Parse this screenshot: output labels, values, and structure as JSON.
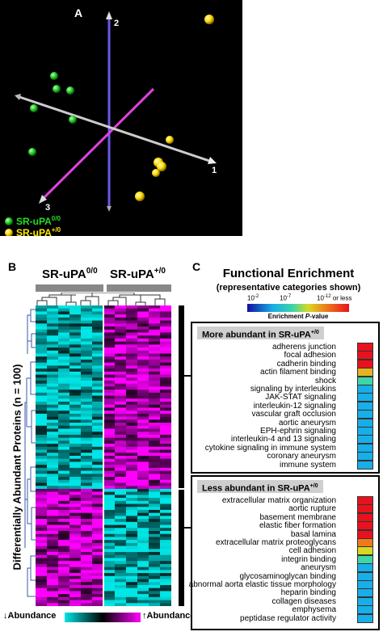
{
  "panel_a": {
    "letter": "A",
    "axes": [
      {
        "label": "1"
      },
      {
        "label": "2"
      },
      {
        "label": "3"
      }
    ],
    "legend": [
      {
        "group": "SR-uPA",
        "superscript": "0/0",
        "color": "#22cc22"
      },
      {
        "group": "SR-uPA",
        "superscript": "+/0",
        "color": "#ffee00"
      }
    ]
  },
  "panel_b": {
    "letter": "B",
    "col_labels": [
      {
        "group": "SR-uPA",
        "superscript": "0/0"
      },
      {
        "group": "SR-uPA",
        "superscript": "+/0"
      }
    ],
    "ylabel": "Differentially Abundant Proteins (n = 100)",
    "scale_left": "Abundance",
    "scale_right": "Abundance",
    "colors": {
      "low": "#00e5e5",
      "mid": "#000000",
      "high": "#ff00ff"
    }
  },
  "panel_c": {
    "letter": "C",
    "title": "Functional Enrichment",
    "subtitle": "(representative categories shown)",
    "colorbar": {
      "ticks": [
        "10",
        "10",
        "10"
      ],
      "exponents": [
        "-2",
        "-7",
        "-12"
      ],
      "suffix": "or less",
      "label": "Enrichment P-value",
      "label_main": "Enrichment ",
      "label_italic": "P",
      "label_rest": "-value"
    },
    "more": {
      "title": "More abundant in SR-uPA",
      "superscript": "+/0",
      "items": [
        {
          "label": "adherens junction",
          "color": "#e8121e"
        },
        {
          "label": "focal adhesion",
          "color": "#e8121e"
        },
        {
          "label": "cadherin binding",
          "color": "#e8121e"
        },
        {
          "label": "actin filament binding",
          "color": "#e8b320"
        },
        {
          "label": "shock",
          "color": "#3ed6a5"
        },
        {
          "label": "signaling by interleukins",
          "color": "#18aee8"
        },
        {
          "label": "JAK-STAT signaling",
          "color": "#18aee8"
        },
        {
          "label": "interleukin-12 signaling",
          "color": "#18aee8"
        },
        {
          "label": "vascular graft occlusion",
          "color": "#18aee8"
        },
        {
          "label": "aortic aneurysm",
          "color": "#18aee8"
        },
        {
          "label": "EPH-ephrin signaling",
          "color": "#18aee8"
        },
        {
          "label": "interleukin-4 and 13 signaling",
          "color": "#18aee8"
        },
        {
          "label": "cytokine signaling in immune system",
          "color": "#18aee8"
        },
        {
          "label": "coronary aneurysm",
          "color": "#18aee8"
        },
        {
          "label": "immune system",
          "color": "#18aee8"
        }
      ]
    },
    "less": {
      "title": "Less abundant in SR-uPA",
      "superscript": "+/0",
      "items": [
        {
          "label": "extracellular matrix organization",
          "color": "#e8121e"
        },
        {
          "label": "aortic rupture",
          "color": "#e8121e"
        },
        {
          "label": "basement membrane",
          "color": "#e8121e"
        },
        {
          "label": "elastic fiber formation",
          "color": "#e8121e"
        },
        {
          "label": "basal lamina",
          "color": "#e8121e"
        },
        {
          "label": "extracellular matrix proteoglycans",
          "color": "#ee7a1a"
        },
        {
          "label": "cell adhesion",
          "color": "#d8d820"
        },
        {
          "label": "integrin binding",
          "color": "#3ed6a5"
        },
        {
          "label": "aneurysm",
          "color": "#18aee8"
        },
        {
          "label": "glycosaminoglycan binding",
          "color": "#18aee8"
        },
        {
          "label": "abnormal aorta elastic tissue morphology",
          "color": "#18aee8"
        },
        {
          "label": "heparin binding",
          "color": "#18aee8"
        },
        {
          "label": "collagen diseases",
          "color": "#18aee8"
        },
        {
          "label": "emphysema",
          "color": "#18aee8"
        },
        {
          "label": "peptidase regulator activity",
          "color": "#18aee8"
        }
      ]
    }
  }
}
